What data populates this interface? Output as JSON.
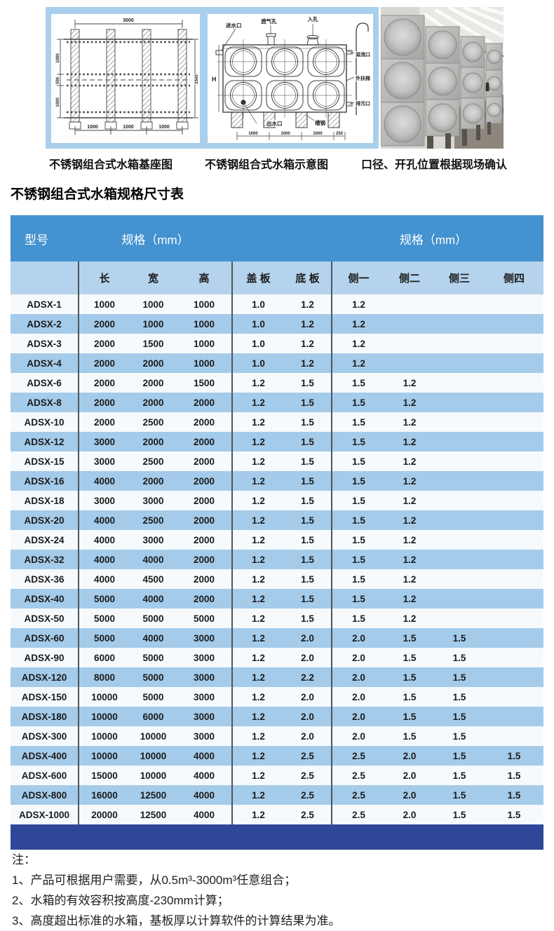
{
  "colors": {
    "header_blue": "#4492cf",
    "subheader_blue": "#b5d3ec",
    "row_blue": "#a4cbea",
    "row_light": "#f6fafd",
    "footer_navy": "#2f4799",
    "panel_blue": "#a9cfec",
    "divider": "#4d565e"
  },
  "diagrams": {
    "base": {
      "caption": "不锈钢组合式水箱基座图",
      "dim_top": "3000",
      "dims_left": [
        "1000",
        "500",
        "1000"
      ],
      "dim_right": "2500",
      "dims_bottom": [
        "1000",
        "1000",
        "1000"
      ]
    },
    "schematic": {
      "caption": "不锈钢组合式水箱示意图",
      "labels": {
        "inlet": "进水口",
        "vent": "透气孔",
        "manhole": "入孔",
        "overflow": "溢流口",
        "ladder": "外扶梯",
        "drain": "排污口",
        "outlet": "出水口",
        "channel": "槽钢",
        "height": "H"
      },
      "dims_bottom": [
        "1000",
        "1000",
        "1000",
        "250"
      ]
    },
    "photo_caption": "口径、开孔位置根据现场确认"
  },
  "table": {
    "title": "不锈钢组合式水箱规格尺寸表",
    "header": {
      "model": "型号",
      "spec_mm_left": "规格（mm）",
      "spec_mm_right": "规格（mm）",
      "sub": [
        "长",
        "宽",
        "高",
        "盖 板",
        "底 板",
        "侧一",
        "侧二",
        "侧三",
        "侧四"
      ]
    },
    "rows": [
      [
        "ADSX-1",
        "1000",
        "1000",
        "1000",
        "1.0",
        "1.2",
        "1.2",
        "",
        "",
        ""
      ],
      [
        "ADSX-2",
        "2000",
        "1000",
        "1000",
        "1.0",
        "1.2",
        "1.2",
        "",
        "",
        ""
      ],
      [
        "ADSX-3",
        "2000",
        "1500",
        "1000",
        "1.0",
        "1.2",
        "1.2",
        "",
        "",
        ""
      ],
      [
        "ADSX-4",
        "2000",
        "2000",
        "1000",
        "1.0",
        "1.2",
        "1.2",
        "",
        "",
        ""
      ],
      [
        "ADSX-6",
        "2000",
        "2000",
        "1500",
        "1.2",
        "1.5",
        "1.5",
        "1.2",
        "",
        ""
      ],
      [
        "ADSX-8",
        "2000",
        "2000",
        "2000",
        "1.2",
        "1.5",
        "1.5",
        "1.2",
        "",
        ""
      ],
      [
        "ADSX-10",
        "2000",
        "2500",
        "2000",
        "1.2",
        "1.5",
        "1.5",
        "1.2",
        "",
        ""
      ],
      [
        "ADSX-12",
        "3000",
        "2000",
        "2000",
        "1.2",
        "1.5",
        "1.5",
        "1.2",
        "",
        ""
      ],
      [
        "ADSX-15",
        "3000",
        "2500",
        "2000",
        "1.2",
        "1.5",
        "1.5",
        "1.2",
        "",
        ""
      ],
      [
        "ADSX-16",
        "4000",
        "2000",
        "2000",
        "1.2",
        "1.5",
        "1.5",
        "1.2",
        "",
        ""
      ],
      [
        "ADSX-18",
        "3000",
        "3000",
        "2000",
        "1.2",
        "1.5",
        "1.5",
        "1.2",
        "",
        ""
      ],
      [
        "ADSX-20",
        "4000",
        "2500",
        "2000",
        "1.2",
        "1.5",
        "1.5",
        "1.2",
        "",
        ""
      ],
      [
        "ADSX-24",
        "4000",
        "3000",
        "2000",
        "1.2",
        "1.5",
        "1.5",
        "1.2",
        "",
        ""
      ],
      [
        "ADSX-32",
        "4000",
        "4000",
        "2000",
        "1.2",
        "1.5",
        "1.5",
        "1.2",
        "",
        ""
      ],
      [
        "ADSX-36",
        "4000",
        "4500",
        "2000",
        "1.2",
        "1.5",
        "1.5",
        "1.2",
        "",
        ""
      ],
      [
        "ADSX-40",
        "5000",
        "4000",
        "2000",
        "1.2",
        "1.5",
        "1.5",
        "1.2",
        "",
        ""
      ],
      [
        "ADSX-50",
        "5000",
        "5000",
        "5000",
        "1.2",
        "1.5",
        "1.5",
        "1.2",
        "",
        ""
      ],
      [
        "ADSX-60",
        "5000",
        "4000",
        "3000",
        "1.2",
        "2.0",
        "2.0",
        "1.5",
        "1.5",
        ""
      ],
      [
        "ADSX-90",
        "6000",
        "5000",
        "3000",
        "1.2",
        "2.0",
        "2.0",
        "1.5",
        "1.5",
        ""
      ],
      [
        "ADSX-120",
        "8000",
        "5000",
        "3000",
        "1.2",
        "2.2",
        "2.0",
        "1.5",
        "1.5",
        ""
      ],
      [
        "ADSX-150",
        "10000",
        "5000",
        "3000",
        "1.2",
        "2.0",
        "2.0",
        "1.5",
        "1.5",
        ""
      ],
      [
        "ADSX-180",
        "10000",
        "6000",
        "3000",
        "1.2",
        "2.0",
        "2.0",
        "1.5",
        "1.5",
        ""
      ],
      [
        "ADSX-300",
        "10000",
        "10000",
        "3000",
        "1.2",
        "2.0",
        "2.0",
        "1.5",
        "1.5",
        ""
      ],
      [
        "ADSX-400",
        "10000",
        "10000",
        "4000",
        "1.2",
        "2.5",
        "2.5",
        "2.0",
        "1.5",
        "1.5"
      ],
      [
        "ADSX-600",
        "15000",
        "10000",
        "4000",
        "1.2",
        "2.5",
        "2.5",
        "2.0",
        "1.5",
        "1.5"
      ],
      [
        "ADSX-800",
        "16000",
        "12500",
        "4000",
        "1.2",
        "2.5",
        "2.5",
        "2.0",
        "1.5",
        "1.5"
      ],
      [
        "ADSX-1000",
        "20000",
        "12500",
        "4000",
        "1.2",
        "2.5",
        "2.5",
        "2.0",
        "1.5",
        "1.5"
      ]
    ]
  },
  "notes": {
    "label": "注：",
    "items": [
      "1、产品可根据用户需要，从0.5m³-3000m³任意组合；",
      "2、水箱的有效容积按高度-230mm计算；",
      "3、高度超出标准的水箱，基板厚以计算软件的计算结果为准。"
    ]
  }
}
